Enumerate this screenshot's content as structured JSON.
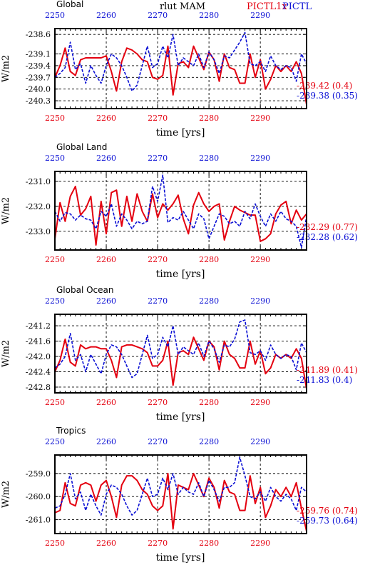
{
  "figure": {
    "suptitle": "rlut MAM",
    "legend_red": "PICTL1x",
    "legend_blue": "PICTL",
    "colors": {
      "red": "#e4000f",
      "blue": "#0a0fd4"
    }
  },
  "chart_data": [
    {
      "type": "line",
      "title": "Global",
      "xlabel": "time [yrs]",
      "ylabel": "W/m2",
      "xlim": [
        2250,
        2299
      ],
      "ylim": [
        -240.5,
        -238.45
      ],
      "yticks": [
        "-238.6",
        "-239.1",
        "-239.4",
        "-239.7",
        "-240.0",
        "-240.3"
      ],
      "ytick_values": [
        -238.6,
        -239.1,
        -239.4,
        -239.7,
        -240.0,
        -240.3
      ],
      "xticks_bottom": [
        "2250",
        "2260",
        "2270",
        "2280",
        "2290"
      ],
      "xticks_top": [
        "2250",
        "2260",
        "2270",
        "2280",
        "2290"
      ],
      "grid": "dashed",
      "series": [
        {
          "name": "PICTL1x",
          "color": "red",
          "label": "-239.42 (0.4)",
          "x_start": 2250,
          "values": [
            -239.7,
            -239.4,
            -238.95,
            -239.55,
            -239.65,
            -239.25,
            -239.2,
            -239.2,
            -239.2,
            -239.2,
            -239.15,
            -239.55,
            -240.05,
            -239.3,
            -238.95,
            -239.0,
            -239.1,
            -239.25,
            -239.3,
            -239.7,
            -239.75,
            -239.65,
            -238.9,
            -240.15,
            -239.35,
            -239.3,
            -239.45,
            -238.9,
            -239.2,
            -239.5,
            -239.05,
            -239.25,
            -239.8,
            -239.1,
            -239.45,
            -239.5,
            -239.85,
            -239.85,
            -239.1,
            -239.7,
            -239.25,
            -240.0,
            -239.75,
            -239.4,
            -239.55,
            -239.4,
            -239.55,
            -239.3,
            -239.6,
            -240.4
          ]
        },
        {
          "name": "PICTL",
          "color": "blue",
          "label": "-239.38 (0.35)",
          "x_start": 2250,
          "values": [
            -239.7,
            -239.6,
            -239.45,
            -238.8,
            -239.5,
            -239.35,
            -239.85,
            -239.4,
            -239.65,
            -239.85,
            -239.4,
            -239.1,
            -239.2,
            -239.4,
            -239.7,
            -240.05,
            -239.9,
            -239.4,
            -238.9,
            -239.45,
            -239.35,
            -238.9,
            -239.2,
            -238.6,
            -239.4,
            -239.2,
            -239.3,
            -239.4,
            -239.1,
            -239.45,
            -239.05,
            -239.25,
            -239.6,
            -239.15,
            -239.2,
            -239.0,
            -238.8,
            -238.55,
            -239.35,
            -239.4,
            -239.3,
            -239.55,
            -239.15,
            -239.4,
            -239.5,
            -239.4,
            -239.45,
            -239.8,
            -239.1,
            -239.35
          ]
        }
      ]
    },
    {
      "type": "line",
      "title": "Global Land",
      "xlabel": "time [yrs]",
      "ylabel": "W/m2",
      "xlim": [
        2250,
        2299
      ],
      "ylim": [
        -233.75,
        -230.6
      ],
      "yticks": [
        "-231.0",
        "-232.0",
        "-233.0"
      ],
      "ytick_values": [
        -231.0,
        -232.0,
        -233.0
      ],
      "xticks_bottom": [
        "2250",
        "2260",
        "2270",
        "2280",
        "2290"
      ],
      "xticks_top": [
        "2250",
        "2260",
        "2270",
        "2280",
        "2290"
      ],
      "grid": "dashed",
      "series": [
        {
          "name": "PICTL1x",
          "color": "red",
          "label": "-232.29 (0.77)",
          "x_start": 2250,
          "values": [
            -233.3,
            -231.85,
            -232.6,
            -231.6,
            -231.2,
            -232.35,
            -232.1,
            -231.6,
            -233.55,
            -231.8,
            -233.1,
            -231.45,
            -231.35,
            -232.8,
            -231.6,
            -232.6,
            -231.5,
            -232.2,
            -232.6,
            -231.5,
            -232.45,
            -231.9,
            -232.15,
            -231.9,
            -231.55,
            -232.5,
            -233.1,
            -231.95,
            -231.45,
            -231.9,
            -232.2,
            -232.0,
            -231.9,
            -233.35,
            -232.6,
            -232.0,
            -232.15,
            -232.25,
            -232.35,
            -232.35,
            -233.4,
            -233.3,
            -233.1,
            -232.3,
            -231.95,
            -231.8,
            -232.7,
            -232.15,
            -232.55,
            -232.3
          ]
        },
        {
          "name": "PICTL",
          "color": "blue",
          "label": "-232.28 (0.62)",
          "x_start": 2250,
          "values": [
            -232.2,
            -232.6,
            -232.25,
            -232.3,
            -232.55,
            -232.35,
            -232.5,
            -232.55,
            -232.9,
            -232.2,
            -232.4,
            -231.9,
            -232.8,
            -232.3,
            -232.55,
            -232.9,
            -232.6,
            -232.7,
            -232.6,
            -231.2,
            -231.8,
            -230.75,
            -232.65,
            -232.45,
            -232.55,
            -232.2,
            -232.55,
            -232.9,
            -232.3,
            -232.5,
            -233.3,
            -232.8,
            -232.3,
            -232.4,
            -232.7,
            -232.6,
            -232.8,
            -232.2,
            -232.5,
            -231.9,
            -232.4,
            -232.8,
            -232.3,
            -232.6,
            -232.2,
            -232.5,
            -232.6,
            -232.8,
            -233.65,
            -232.4
          ]
        }
      ]
    },
    {
      "type": "line",
      "title": "Global Ocean",
      "xlabel": "time [yrs]",
      "ylabel": "W/m2",
      "xlim": [
        2250,
        2299
      ],
      "ylim": [
        -242.95,
        -240.9
      ],
      "yticks": [
        "-241.2",
        "-241.6",
        "-242.0",
        "-242.4",
        "-242.8"
      ],
      "ytick_values": [
        -241.2,
        -241.6,
        -242.0,
        -242.4,
        -242.8
      ],
      "xticks_bottom": [
        "2250",
        "2260",
        "2270",
        "2280",
        "2290"
      ],
      "xticks_top": [
        "2250",
        "2260",
        "2270",
        "2280",
        "2290"
      ],
      "grid": "dashed",
      "series": [
        {
          "name": "PICTL1x",
          "color": "red",
          "label": "-241.89 (0.41)",
          "x_start": 2250,
          "values": [
            -242.4,
            -242.1,
            -241.55,
            -242.15,
            -242.25,
            -241.7,
            -241.8,
            -241.75,
            -241.75,
            -241.8,
            -241.8,
            -242.1,
            -242.55,
            -241.75,
            -241.7,
            -241.7,
            -241.75,
            -241.8,
            -241.9,
            -242.25,
            -242.25,
            -242.1,
            -241.6,
            -242.75,
            -241.9,
            -241.85,
            -241.95,
            -241.5,
            -241.8,
            -242.1,
            -241.6,
            -241.75,
            -242.35,
            -241.6,
            -241.95,
            -242.05,
            -242.3,
            -242.3,
            -241.6,
            -242.2,
            -241.85,
            -242.45,
            -242.3,
            -241.95,
            -242.05,
            -241.95,
            -242.05,
            -241.8,
            -242.05,
            -242.85
          ]
        },
        {
          "name": "PICTL",
          "color": "blue",
          "label": "-241.83 (0.4)",
          "x_start": 2250,
          "values": [
            -242.3,
            -242.2,
            -242.0,
            -241.4,
            -242.1,
            -241.95,
            -242.4,
            -241.95,
            -242.2,
            -242.45,
            -241.95,
            -241.7,
            -241.75,
            -241.95,
            -242.25,
            -242.55,
            -242.45,
            -241.95,
            -241.45,
            -242.05,
            -241.95,
            -241.5,
            -241.75,
            -241.2,
            -241.95,
            -241.75,
            -241.85,
            -241.95,
            -241.65,
            -242.0,
            -241.6,
            -241.8,
            -242.15,
            -241.7,
            -241.75,
            -241.55,
            -241.1,
            -241.05,
            -241.9,
            -241.95,
            -241.85,
            -242.1,
            -241.7,
            -241.95,
            -242.05,
            -241.95,
            -242.0,
            -242.35,
            -241.65,
            -241.9
          ]
        }
      ]
    },
    {
      "type": "line",
      "title": "Tropics",
      "xlabel": "time [yrs]",
      "ylabel": "W/m2",
      "xlim": [
        2250,
        2299
      ],
      "ylim": [
        -261.6,
        -258.2
      ],
      "yticks": [
        "-259.0",
        "-260.0",
        "-261.0"
      ],
      "ytick_values": [
        -259.0,
        -260.0,
        -261.0
      ],
      "xticks_bottom": [
        "2250",
        "2260",
        "2270",
        "2280",
        "2290"
      ],
      "xticks_top": [
        "2250",
        "2260",
        "2270",
        "2280",
        "2290"
      ],
      "grid": "dashed",
      "series": [
        {
          "name": "PICTL1x",
          "color": "red",
          "label": "-259.76 (0.74)",
          "x_start": 2250,
          "values": [
            -260.7,
            -260.6,
            -259.4,
            -260.3,
            -260.4,
            -259.5,
            -259.4,
            -259.5,
            -260.2,
            -259.5,
            -259.3,
            -260.0,
            -260.9,
            -259.5,
            -259.1,
            -259.1,
            -259.3,
            -259.7,
            -259.9,
            -260.4,
            -260.6,
            -260.4,
            -259.0,
            -261.4,
            -259.5,
            -259.6,
            -259.7,
            -259.0,
            -259.5,
            -260.0,
            -259.2,
            -259.6,
            -260.5,
            -259.3,
            -259.8,
            -259.9,
            -260.6,
            -260.6,
            -259.1,
            -260.3,
            -259.6,
            -260.9,
            -260.4,
            -259.7,
            -260.0,
            -259.6,
            -260.0,
            -259.4,
            -260.5,
            -261.5
          ]
        },
        {
          "name": "PICTL",
          "color": "blue",
          "label": "-259.73 (0.64)",
          "x_start": 2250,
          "values": [
            -260.5,
            -260.4,
            -259.9,
            -259.0,
            -260.1,
            -259.8,
            -260.6,
            -259.9,
            -260.4,
            -260.8,
            -259.9,
            -259.5,
            -259.6,
            -259.9,
            -260.4,
            -260.8,
            -260.6,
            -259.9,
            -259.2,
            -260.0,
            -259.9,
            -259.2,
            -259.7,
            -259.0,
            -259.9,
            -259.6,
            -259.8,
            -259.9,
            -259.4,
            -260.0,
            -259.3,
            -259.7,
            -260.2,
            -259.6,
            -259.6,
            -259.4,
            -258.3,
            -259.1,
            -260.0,
            -260.1,
            -259.8,
            -260.2,
            -259.6,
            -260.0,
            -260.2,
            -259.9,
            -260.1,
            -260.6,
            -259.6,
            -259.8
          ]
        }
      ]
    }
  ]
}
